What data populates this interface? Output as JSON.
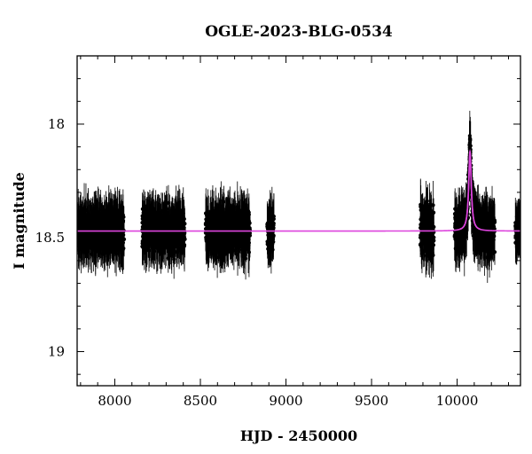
{
  "chart_data": {
    "type": "scatter",
    "title": "OGLE-2023-BLG-0534",
    "xlabel": "HJD - 2450000",
    "ylabel": "I magnitude",
    "xlim": [
      7780,
      10370
    ],
    "ylim": [
      19.15,
      17.7
    ],
    "y_inverted": true,
    "x_ticks": [
      8000,
      8500,
      9000,
      9500,
      10000
    ],
    "y_ticks": [
      18,
      18.5,
      19
    ],
    "y_tick_labels": [
      "18",
      "18.5",
      "19"
    ],
    "baseline_mag": 18.47,
    "observing_seasons": [
      {
        "start": 7785,
        "end": 8055,
        "mean_mag": 18.47,
        "scatter": 0.13
      },
      {
        "start": 8160,
        "end": 8410,
        "mean_mag": 18.47,
        "scatter": 0.13
      },
      {
        "start": 8530,
        "end": 8790,
        "mean_mag": 18.47,
        "scatter": 0.13
      },
      {
        "start": 8890,
        "end": 8930,
        "mean_mag": 18.47,
        "scatter": 0.13
      },
      {
        "start": 9785,
        "end": 9865,
        "mean_mag": 18.47,
        "scatter": 0.16
      },
      {
        "start": 9985,
        "end": 10220,
        "mean_mag": 18.47,
        "scatter": 0.14
      },
      {
        "start": 10340,
        "end": 10370,
        "mean_mag": 18.47,
        "scatter": 0.08
      }
    ],
    "peak": {
      "t0": 10075,
      "mag": 18.12,
      "width_days": 9
    },
    "colors": {
      "data": "#000000",
      "model": "#dd44dd"
    }
  }
}
